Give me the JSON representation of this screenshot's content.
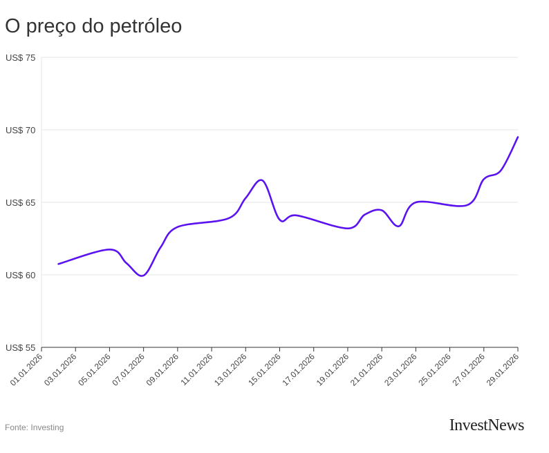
{
  "title": "O preço do petróleo",
  "source": "Fonte: Investing",
  "brand": "InvestNews",
  "colors": {
    "line": "#5a12f0",
    "grid": "#e6e6e6",
    "axis": "#333333"
  },
  "chart_data": {
    "type": "line",
    "title": "O preço do petróleo",
    "xlabel": "",
    "ylabel": "",
    "y_ticks": [
      "US$ 55",
      "US$ 60",
      "US$ 65",
      "US$ 70",
      "US$ 75"
    ],
    "y_tick_values": [
      55,
      60,
      65,
      70,
      75
    ],
    "ylim": [
      55,
      75
    ],
    "x_ticks": [
      "01.01.2026",
      "03.01.2026",
      "05.01.2026",
      "07.01.2026",
      "09.01.2026",
      "11.01.2026",
      "13.01.2026",
      "15.01.2026",
      "17.01.2026",
      "19.01.2026",
      "21.01.2026",
      "23.01.2026",
      "25.01.2026",
      "27.01.2026",
      "29.01.2026"
    ],
    "xlim": [
      "01.01.2026",
      "29.01.2026"
    ],
    "grid": true,
    "legend": "none",
    "series": [
      {
        "x": [
          "02.01.2026",
          "05.01.2026",
          "06.01.2026",
          "07.01.2026",
          "08.01.2026",
          "09.01.2026",
          "12.01.2026",
          "13.01.2026",
          "14.01.2026",
          "15.01.2026",
          "16.01.2026",
          "19.01.2026",
          "20.01.2026",
          "21.01.2026",
          "22.01.2026",
          "23.01.2026",
          "26.01.2026",
          "27.01.2026",
          "28.01.2026",
          "29.01.2026"
        ],
        "values": [
          60.75,
          61.75,
          60.8,
          59.95,
          61.9,
          63.3,
          63.9,
          65.3,
          66.5,
          63.8,
          64.1,
          63.2,
          64.15,
          64.45,
          63.35,
          65.0,
          64.8,
          66.6,
          67.2,
          69.5
        ]
      }
    ]
  }
}
